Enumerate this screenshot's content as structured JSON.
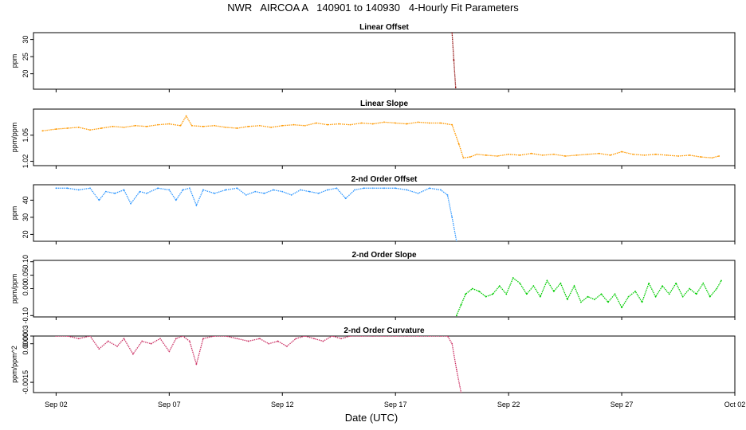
{
  "title": "NWR   AIRCOA A   140901 to 140930   4-Hourly Fit Parameters",
  "xlabel": "Date (UTC)",
  "chart_data": [
    {
      "type": "line",
      "title": "Linear Offset",
      "ylabel": "ppm",
      "color": "#8b0000",
      "xlim": [
        0,
        31
      ],
      "ylim": [
        15.5,
        32
      ],
      "yticks": [
        20,
        25,
        30
      ],
      "ytick_labels": [
        "20",
        "25",
        "30"
      ],
      "x_ticks": [
        "Sep 02",
        "Sep 07",
        "Sep 12",
        "Sep 17",
        "Sep 22",
        "Sep 27",
        "Oct 02"
      ],
      "x": [
        18.5,
        18.58,
        18.66
      ],
      "y": [
        32,
        24,
        16
      ]
    },
    {
      "type": "line",
      "title": "Linear Slope",
      "ylabel": "ppm/ppm",
      "color": "#ff9900",
      "xlim": [
        0,
        31
      ],
      "ylim": [
        1.015,
        1.08
      ],
      "yticks": [
        1.02,
        1.05
      ],
      "ytick_labels": [
        "1.02",
        "1.05"
      ],
      "x_ticks": [
        "Sep 02",
        "Sep 07",
        "Sep 12",
        "Sep 17",
        "Sep 22",
        "Sep 27",
        "Oct 02"
      ],
      "x": [
        0.4,
        1.0,
        1.5,
        2.0,
        2.5,
        3.0,
        3.5,
        4.0,
        4.5,
        5.0,
        5.5,
        6.0,
        6.5,
        6.75,
        7.0,
        7.5,
        8.0,
        8.5,
        9.0,
        9.5,
        10.0,
        10.5,
        11.0,
        11.5,
        12.0,
        12.5,
        13.0,
        13.5,
        14.0,
        14.5,
        15.0,
        15.5,
        16.0,
        16.5,
        17.0,
        17.5,
        18.0,
        18.5,
        18.8,
        19.0,
        19.3,
        19.6,
        20.0,
        20.5,
        21.0,
        21.5,
        22.0,
        22.5,
        23.0,
        23.5,
        24.0,
        24.5,
        25.0,
        25.5,
        26.0,
        26.5,
        27.0,
        27.5,
        28.0,
        28.5,
        29.0,
        29.5,
        30.0,
        30.3
      ],
      "y": [
        1.055,
        1.057,
        1.058,
        1.059,
        1.056,
        1.058,
        1.06,
        1.059,
        1.061,
        1.06,
        1.062,
        1.063,
        1.061,
        1.072,
        1.061,
        1.06,
        1.061,
        1.059,
        1.058,
        1.06,
        1.061,
        1.059,
        1.061,
        1.062,
        1.061,
        1.064,
        1.062,
        1.063,
        1.062,
        1.064,
        1.063,
        1.065,
        1.064,
        1.063,
        1.065,
        1.064,
        1.064,
        1.062,
        1.04,
        1.024,
        1.025,
        1.028,
        1.027,
        1.026,
        1.028,
        1.027,
        1.029,
        1.027,
        1.028,
        1.026,
        1.027,
        1.028,
        1.029,
        1.027,
        1.031,
        1.028,
        1.027,
        1.028,
        1.027,
        1.026,
        1.027,
        1.025,
        1.024,
        1.026
      ]
    },
    {
      "type": "line",
      "title": "2-nd Order Offset",
      "ylabel": "ppm",
      "color": "#3399ff",
      "xlim": [
        0,
        31
      ],
      "ylim": [
        16,
        49
      ],
      "yticks": [
        20,
        30,
        40
      ],
      "ytick_labels": [
        "20",
        "30",
        "40"
      ],
      "x_ticks": [
        "Sep 02",
        "Sep 07",
        "Sep 12",
        "Sep 17",
        "Sep 22",
        "Sep 27",
        "Oct 02"
      ],
      "x": [
        1.0,
        1.5,
        2.0,
        2.5,
        2.9,
        3.2,
        3.6,
        4.0,
        4.3,
        4.7,
        5.0,
        5.5,
        6.0,
        6.3,
        6.6,
        6.9,
        7.2,
        7.5,
        8.0,
        8.5,
        9.0,
        9.4,
        9.8,
        10.2,
        10.6,
        11.0,
        11.4,
        11.8,
        12.2,
        12.6,
        13.0,
        13.4,
        13.8,
        14.2,
        14.6,
        15.0,
        15.5,
        16.0,
        16.5,
        17.0,
        17.5,
        18.0,
        18.3,
        18.5,
        18.7
      ],
      "y": [
        47,
        47,
        46,
        47,
        40,
        45,
        44,
        46,
        38,
        45,
        44,
        47,
        46,
        40,
        46,
        47,
        37,
        46,
        44,
        46,
        47,
        43,
        45,
        44,
        46,
        45,
        43,
        46,
        45,
        44,
        46,
        47,
        41,
        46,
        47,
        47,
        47,
        47,
        46,
        44,
        47,
        46,
        43,
        30,
        16
      ]
    },
    {
      "type": "line",
      "title": "2-nd Order Slope",
      "ylabel": "ppm/ppm",
      "color": "#00cc00",
      "xlim": [
        0,
        31
      ],
      "ylim": [
        -0.105,
        0.105
      ],
      "yticks": [
        -0.1,
        0.0,
        0.05,
        0.1
      ],
      "ytick_labels": [
        "-0.10",
        "0.00",
        "0.05",
        "0.10"
      ],
      "x_ticks": [
        "Sep 02",
        "Sep 07",
        "Sep 12",
        "Sep 17",
        "Sep 22",
        "Sep 27",
        "Oct 02"
      ],
      "x": [
        18.7,
        18.9,
        19.1,
        19.4,
        19.7,
        20.0,
        20.3,
        20.6,
        20.9,
        21.2,
        21.5,
        21.8,
        22.1,
        22.4,
        22.7,
        23.0,
        23.3,
        23.6,
        23.9,
        24.2,
        24.5,
        24.8,
        25.1,
        25.4,
        25.7,
        26.0,
        26.3,
        26.6,
        26.9,
        27.2,
        27.5,
        27.8,
        28.1,
        28.4,
        28.7,
        29.0,
        29.3,
        29.6,
        29.9,
        30.2,
        30.4
      ],
      "y": [
        -0.1,
        -0.06,
        -0.02,
        0.0,
        -0.01,
        -0.03,
        -0.02,
        0.01,
        -0.02,
        0.04,
        0.02,
        -0.02,
        0.01,
        -0.03,
        0.03,
        -0.01,
        0.02,
        -0.04,
        0.01,
        -0.05,
        -0.03,
        -0.04,
        -0.02,
        -0.05,
        -0.02,
        -0.07,
        -0.03,
        -0.01,
        -0.05,
        0.02,
        -0.03,
        0.01,
        -0.02,
        0.02,
        -0.03,
        0.0,
        -0.02,
        0.02,
        -0.03,
        0.0,
        0.03
      ]
    },
    {
      "type": "line",
      "title": "2-nd Order Curvature",
      "ylabel": "ppm/ppm^2",
      "color": "#cc3366",
      "xlim": [
        0,
        31
      ],
      "ylim": [
        -0.0019,
        0.0003
      ],
      "yticks": [
        -0.0015,
        0.0,
        0.0003
      ],
      "ytick_labels": [
        "-0.0015",
        "0.0000",
        "0.0003"
      ],
      "x_ticks": [
        "Sep 02",
        "Sep 07",
        "Sep 12",
        "Sep 17",
        "Sep 22",
        "Sep 27",
        "Oct 02"
      ],
      "x": [
        1.0,
        1.5,
        2.0,
        2.5,
        2.9,
        3.3,
        3.7,
        4.0,
        4.4,
        4.8,
        5.2,
        5.6,
        6.0,
        6.3,
        6.6,
        6.9,
        7.2,
        7.5,
        8.0,
        8.5,
        9.0,
        9.5,
        10.0,
        10.4,
        10.8,
        11.2,
        11.6,
        12.0,
        12.4,
        12.8,
        13.2,
        13.6,
        14.0,
        14.5,
        15.0,
        15.5,
        16.0,
        16.5,
        17.0,
        17.5,
        18.0,
        18.3,
        18.5,
        18.7,
        18.9
      ],
      "y": [
        0.0003,
        0.0003,
        0.0002,
        0.0003,
        -0.0002,
        0.0001,
        -0.0001,
        0.0002,
        -0.0004,
        0.0001,
        0.0,
        0.0002,
        -0.0003,
        0.0002,
        0.0003,
        0.0001,
        -0.0008,
        0.0002,
        0.0003,
        0.0003,
        0.0002,
        0.0001,
        0.0002,
        0.0,
        0.0001,
        -0.0001,
        0.0002,
        0.0003,
        0.0002,
        0.0001,
        0.0003,
        0.0002,
        0.0003,
        0.0003,
        0.0003,
        0.0003,
        0.0003,
        0.0003,
        0.0003,
        0.0003,
        0.0003,
        0.0003,
        0.0,
        -0.001,
        -0.0019
      ]
    }
  ]
}
